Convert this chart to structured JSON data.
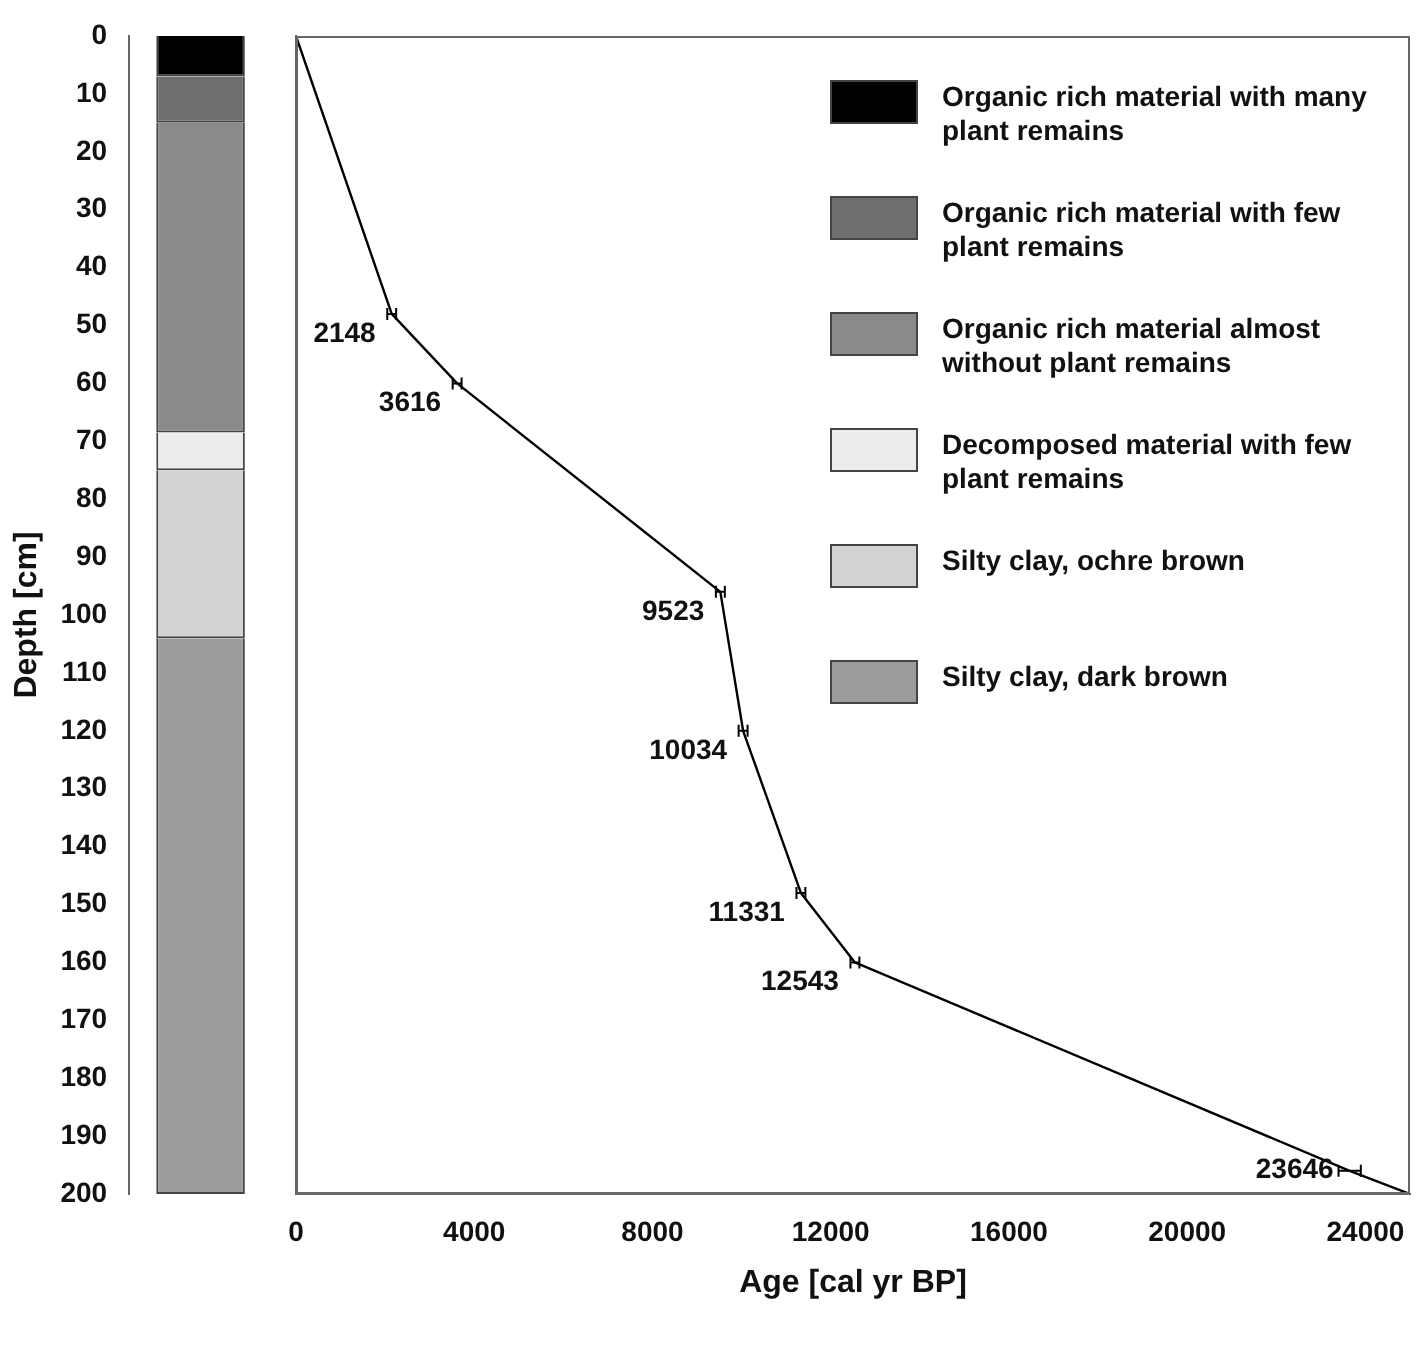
{
  "chart_data": [
    {
      "type": "bar",
      "stacked": true,
      "categories": [
        null
      ],
      "ylabel": "Depth [cm]",
      "ylim": [
        200,
        0
      ],
      "yticks": [
        0,
        10,
        20,
        30,
        40,
        50,
        60,
        70,
        80,
        90,
        100,
        110,
        120,
        130,
        140,
        150,
        160,
        170,
        180,
        190,
        200
      ],
      "legend": "right",
      "series": [
        {
          "name": "Organic rich material with many plant remains",
          "color": "#000000",
          "values": [
            7
          ]
        },
        {
          "name": "Organic rich material with few plant remains",
          "color": "#6e6e6e",
          "values": [
            8
          ]
        },
        {
          "name": "Organic rich material almost without plant remains",
          "color": "#8a8a8a",
          "values": [
            53.5
          ]
        },
        {
          "name": "Decomposed material with few plant remains",
          "color": "#ececec",
          "values": [
            6.5
          ]
        },
        {
          "name": "Silty clay, ochre brown",
          "color": "#d3d3d3",
          "values": [
            29
          ]
        },
        {
          "name": "Silty clay, dark brown",
          "color": "#9c9c9c",
          "values": [
            96
          ]
        }
      ]
    },
    {
      "type": "line",
      "xlabel": "Age [cal yr BP]",
      "xlim": [
        0,
        25000
      ],
      "xticks": [
        0,
        4000,
        8000,
        12000,
        16000,
        20000,
        24000
      ],
      "ylim": [
        200,
        0
      ],
      "yticks": [
        0,
        10,
        20,
        30,
        40,
        50,
        60,
        70,
        80,
        90,
        100,
        110,
        120,
        130,
        140,
        150,
        160,
        170,
        180,
        190,
        200
      ],
      "tick_labels": "x",
      "color": "#000000",
      "x": [
        0,
        2148,
        3616,
        9523,
        10034,
        11331,
        12543,
        23646,
        25000
      ],
      "values": [
        0,
        48,
        60,
        96,
        120,
        148,
        160,
        196,
        200
      ],
      "xerrors": [
        null,
        100,
        100,
        100,
        100,
        100,
        100,
        250,
        null
      ],
      "annotations": [
        {
          "text": "2148",
          "x": 2148,
          "y": 48
        },
        {
          "text": "3616",
          "x": 3616,
          "y": 60
        },
        {
          "text": "9523",
          "x": 9523,
          "y": 96
        },
        {
          "text": "10034",
          "x": 10034,
          "y": 120
        },
        {
          "text": "11331",
          "x": 11331,
          "y": 148
        },
        {
          "text": "12543",
          "x": 12543,
          "y": 160
        },
        {
          "text": "23646",
          "x": 23646,
          "y": 196
        }
      ]
    }
  ]
}
